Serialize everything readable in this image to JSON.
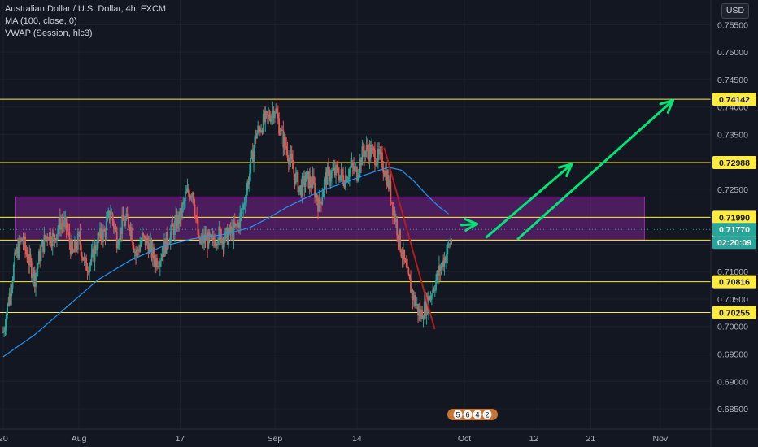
{
  "legend": {
    "symbol": "Australian Dollar / U.S. Dollar, 4h, FXCM",
    "ma": "MA (100, close, 0)",
    "vwap": "VWAP (Session, hlc3)"
  },
  "currency": "USD",
  "events_badge": [
    "5",
    "6",
    "4",
    "2"
  ],
  "colors": {
    "background": "#131722",
    "up": "#26a69a",
    "down": "#ef5350",
    "ma": "#2196f3",
    "level": "#ffeb3b",
    "zone": "#9c27b0",
    "arrow": "#00e676",
    "trendline": "#b71c1c"
  },
  "chart_data": {
    "type": "candlestick",
    "symbol": "AUDUSD",
    "timeframe": "4h",
    "xaxis": {
      "ticks": [
        {
          "label": "20",
          "day": 0
        },
        {
          "label": "Aug",
          "day": 12
        },
        {
          "label": "17",
          "day": 28
        },
        {
          "label": "Sep",
          "day": 43
        },
        {
          "label": "14",
          "day": 56
        },
        {
          "label": "Oct",
          "day": 73
        },
        {
          "label": "12",
          "day": 84
        },
        {
          "label": "21",
          "day": 93
        },
        {
          "label": "Nov",
          "day": 104
        }
      ],
      "range_days": [
        -0.5,
        112
      ]
    },
    "yaxis": {
      "ticks": [
        0.755,
        0.75,
        0.745,
        0.74,
        0.735,
        0.73,
        0.725,
        0.72,
        0.715,
        0.71,
        0.705,
        0.7,
        0.695,
        0.69,
        0.685
      ],
      "tick_labels": [
        "0.75500",
        "0.75000",
        "0.74500",
        "0.74000",
        "0.73500",
        "0.73000",
        "0.72500",
        "0.72000",
        "0.71500",
        "0.71000",
        "0.70500",
        "0.70000",
        "0.69500",
        "0.69000",
        "0.68500"
      ],
      "range": [
        0.6813,
        0.7595
      ]
    },
    "price_path": [
      [
        0,
        0.699
      ],
      [
        1,
        0.706
      ],
      [
        2,
        0.713
      ],
      [
        3,
        0.716
      ],
      [
        4,
        0.712
      ],
      [
        5,
        0.709
      ],
      [
        6,
        0.714
      ],
      [
        7,
        0.717
      ],
      [
        8,
        0.716
      ],
      [
        9,
        0.719
      ],
      [
        10,
        0.718
      ],
      [
        11,
        0.713
      ],
      [
        12,
        0.716
      ],
      [
        13,
        0.711
      ],
      [
        14,
        0.712
      ],
      [
        15,
        0.716
      ],
      [
        16,
        0.717
      ],
      [
        17,
        0.721
      ],
      [
        18,
        0.716
      ],
      [
        19,
        0.719
      ],
      [
        20,
        0.719
      ],
      [
        21,
        0.713
      ],
      [
        22,
        0.716
      ],
      [
        23,
        0.715
      ],
      [
        24,
        0.712
      ],
      [
        25,
        0.713
      ],
      [
        26,
        0.716
      ],
      [
        27,
        0.718
      ],
      [
        28,
        0.72
      ],
      [
        29,
        0.724
      ],
      [
        30,
        0.725
      ],
      [
        31,
        0.715
      ],
      [
        32,
        0.716
      ],
      [
        33,
        0.715
      ],
      [
        34,
        0.717
      ],
      [
        35,
        0.716
      ],
      [
        36,
        0.717
      ],
      [
        37,
        0.718
      ],
      [
        38,
        0.722
      ],
      [
        39,
        0.728
      ],
      [
        40,
        0.735
      ],
      [
        41,
        0.737
      ],
      [
        42,
        0.738
      ],
      [
        43,
        0.74
      ],
      [
        44,
        0.735
      ],
      [
        45,
        0.732
      ],
      [
        46,
        0.728
      ],
      [
        47,
        0.725
      ],
      [
        48,
        0.727
      ],
      [
        49,
        0.726
      ],
      [
        50,
        0.722
      ],
      [
        51,
        0.727
      ],
      [
        52,
        0.728
      ],
      [
        53,
        0.728
      ],
      [
        54,
        0.727
      ],
      [
        55,
        0.729
      ],
      [
        56,
        0.728
      ],
      [
        57,
        0.732
      ],
      [
        58,
        0.732
      ],
      [
        59,
        0.731
      ],
      [
        60,
        0.73
      ],
      [
        61,
        0.726
      ],
      [
        62,
        0.72
      ],
      [
        63,
        0.714
      ],
      [
        64,
        0.709
      ],
      [
        65,
        0.705
      ],
      [
        66,
        0.702
      ],
      [
        67,
        0.704
      ],
      [
        68,
        0.707
      ],
      [
        69,
        0.71
      ],
      [
        70,
        0.713
      ],
      [
        71,
        0.716
      ]
    ],
    "ma100_path": [
      [
        0,
        0.6945
      ],
      [
        5,
        0.6985
      ],
      [
        10,
        0.7035
      ],
      [
        15,
        0.7085
      ],
      [
        20,
        0.712
      ],
      [
        25,
        0.7145
      ],
      [
        30,
        0.716
      ],
      [
        35,
        0.7168
      ],
      [
        39,
        0.718
      ],
      [
        42,
        0.7198
      ],
      [
        45,
        0.7218
      ],
      [
        48,
        0.7235
      ],
      [
        51,
        0.725
      ],
      [
        54,
        0.7262
      ],
      [
        57,
        0.7275
      ],
      [
        59,
        0.7283
      ],
      [
        61,
        0.729
      ],
      [
        63,
        0.7285
      ],
      [
        65,
        0.7265
      ],
      [
        67,
        0.724
      ],
      [
        69,
        0.7218
      ],
      [
        70.5,
        0.7205
      ]
    ],
    "last_price": 0.7177,
    "countdown": "02:20:09",
    "levels": [
      {
        "label": "0.74142",
        "value": 0.74142
      },
      {
        "label": "0.72988",
        "value": 0.72988
      },
      {
        "label": "0.71990",
        "value": 0.7199
      },
      {
        "label": "0.71575",
        "value": 0.71575
      },
      {
        "label": "0.70816",
        "value": 0.70816
      },
      {
        "label": "0.70255",
        "value": 0.70255
      }
    ],
    "zone": {
      "from_day": 2,
      "to_day": 101.5,
      "low": 0.71575,
      "high": 0.7236
    },
    "trendline": {
      "from": [
        60.3,
        0.7326
      ],
      "to": [
        68.3,
        0.6995
      ]
    },
    "arrows": [
      {
        "from": [
          72.5,
          0.7185
        ],
        "to": [
          75,
          0.7187
        ],
        "kind": "small"
      },
      {
        "from": [
          76.5,
          0.7163
        ],
        "to": [
          90,
          0.7296
        ],
        "kind": "long"
      },
      {
        "from": [
          81.5,
          0.716
        ],
        "to": [
          106,
          0.7412
        ],
        "kind": "long"
      }
    ]
  }
}
